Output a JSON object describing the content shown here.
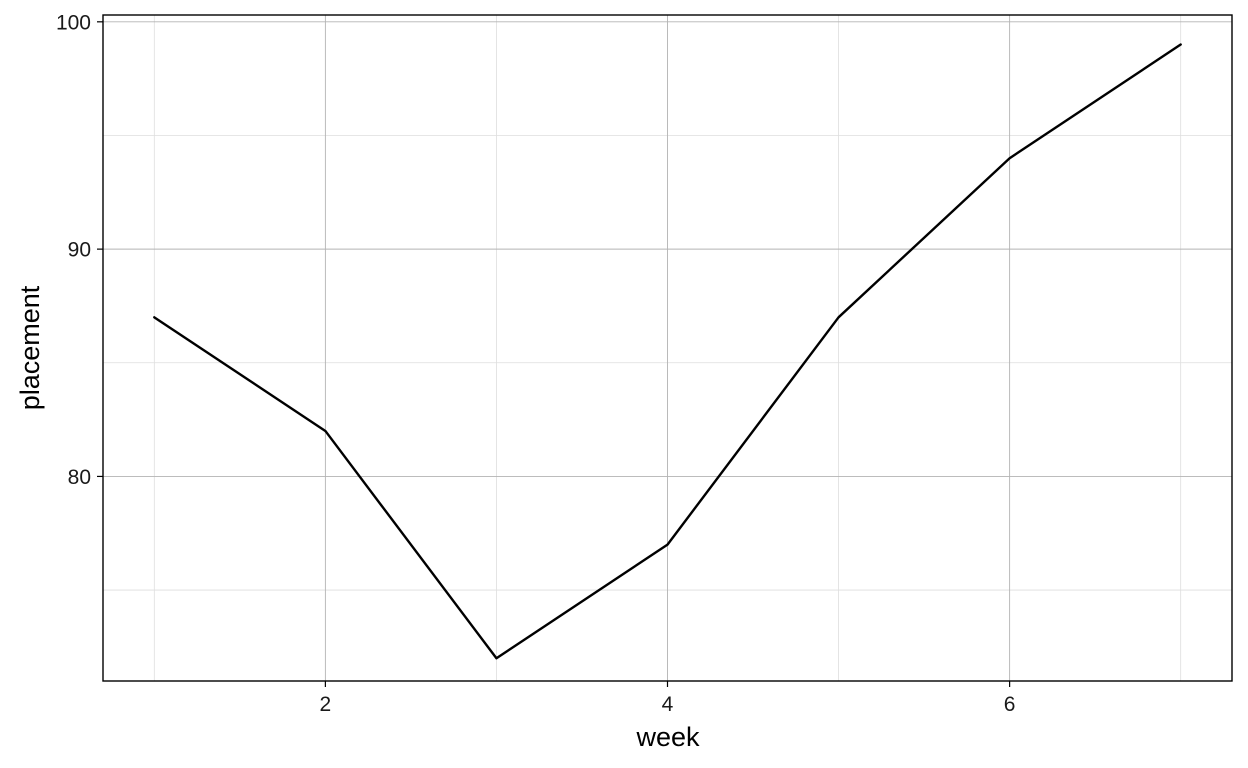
{
  "chart_data": {
    "type": "line",
    "title": "",
    "xlabel": "week",
    "ylabel": "placement",
    "x": [
      1,
      2,
      3,
      4,
      5,
      6,
      7
    ],
    "series": [
      {
        "values": [
          87,
          82,
          72,
          77,
          87,
          94,
          99
        ]
      }
    ],
    "xlim": [
      0.7,
      7.3
    ],
    "ylim": [
      71.0,
      100.3
    ],
    "x_major_ticks": [
      2,
      4,
      6
    ],
    "x_minor_ticks": [
      1,
      3,
      5,
      7
    ],
    "y_major_ticks": [
      80,
      90,
      100
    ],
    "y_minor_ticks": [
      75,
      85,
      95
    ],
    "grid": true,
    "legend": "none",
    "colors": {
      "line": "#000000",
      "major_grid": "#b3b3b3",
      "minor_grid": "#dedede",
      "frame": "#000000"
    }
  }
}
